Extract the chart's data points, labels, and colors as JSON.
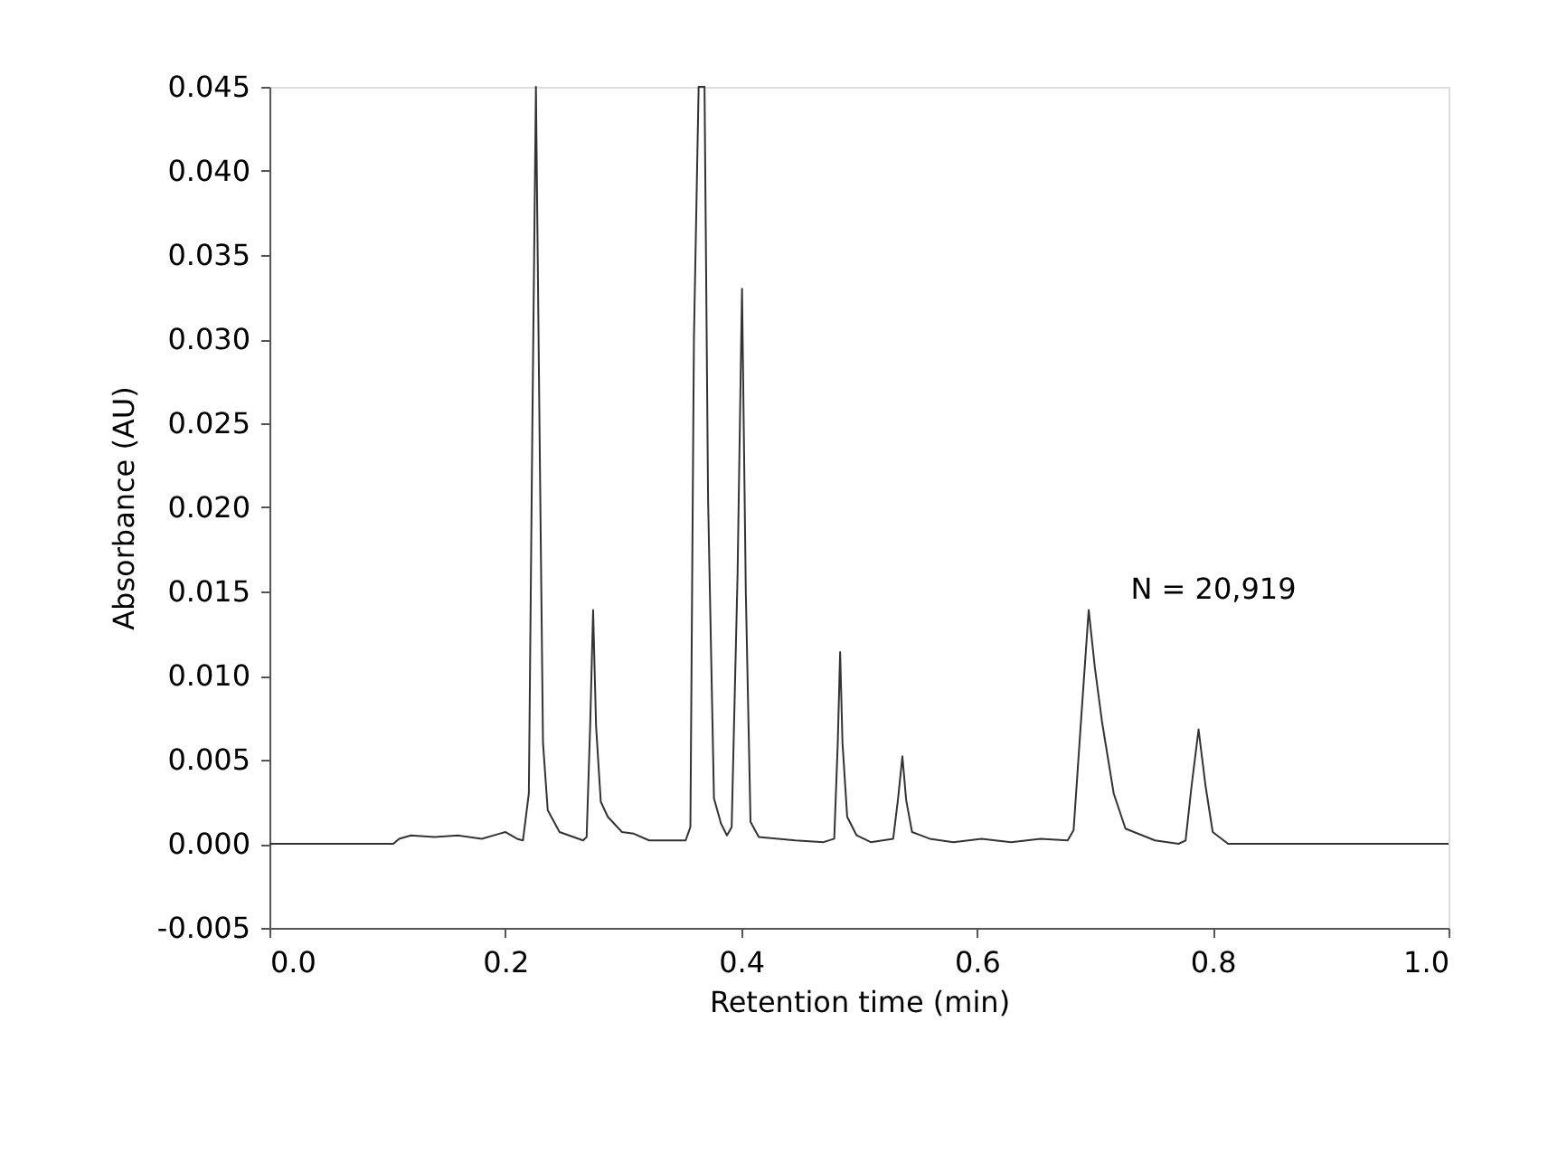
{
  "chart_data": {
    "type": "line",
    "xlabel": "Retention time (min)",
    "ylabel": "Absorbance (AU)",
    "xlim": [
      0,
      1
    ],
    "xticks": [
      {
        "value": 0,
        "label": "0.0"
      },
      0.2,
      0.4,
      0.6,
      0.8,
      {
        "value": 1,
        "label": "1.0"
      }
    ],
    "ylim": [
      -0.005,
      0.045
    ],
    "yticks": [
      -0.005,
      {
        "value": 0,
        "label": "0.000"
      },
      0.005,
      {
        "value": 0.01,
        "label": "0.010"
      },
      0.015,
      {
        "value": 0.02,
        "label": "0.020"
      },
      0.025,
      {
        "value": 0.03,
        "label": "0.030"
      },
      0.035,
      {
        "value": 0.04,
        "label": "0.040"
      },
      0.045
    ],
    "grid": false,
    "marker": "none",
    "line_style": "solid",
    "annotations": [
      "N = 20,919"
    ],
    "series": [
      {
        "color": "#333333",
        "x": [
          0.0,
          0.105,
          0.11,
          0.12,
          0.14,
          0.16,
          0.18,
          0.195,
          0.2,
          0.21,
          0.215,
          0.22,
          0.223,
          0.226,
          0.229,
          0.232,
          0.236,
          0.246,
          0.266,
          0.269,
          0.272,
          0.2745,
          0.277,
          0.281,
          0.287,
          0.299,
          0.309,
          0.322,
          0.353,
          0.357,
          0.36,
          0.364,
          0.369,
          0.372,
          0.377,
          0.383,
          0.388,
          0.392,
          0.397,
          0.4008,
          0.404,
          0.408,
          0.415,
          0.446,
          0.47,
          0.479,
          0.482,
          0.484,
          0.486,
          0.49,
          0.498,
          0.51,
          0.529,
          0.533,
          0.5368,
          0.54,
          0.545,
          0.56,
          0.58,
          0.604,
          0.629,
          0.654,
          0.677,
          0.682,
          0.688,
          0.6948,
          0.7,
          0.706,
          0.716,
          0.726,
          0.751,
          0.771,
          0.777,
          0.782,
          0.788,
          0.794,
          0.8,
          0.813,
          1.0
        ],
        "values": [
          0,
          0,
          0.0003,
          0.0005,
          0.0004,
          0.0005,
          0.0003,
          0.0006,
          0.0007,
          0.0003,
          0.0002,
          0.003,
          0.025,
          0.045,
          0.025,
          0.006,
          0.002,
          0.0007,
          0.0002,
          0.0004,
          0.007,
          0.0139,
          0.007,
          0.0025,
          0.0016,
          0.0007,
          0.0006,
          0.0002,
          0.0002,
          0.001,
          0.03,
          0.045,
          0.045,
          0.0205,
          0.0027,
          0.0012,
          0.0005,
          0.001,
          0.016,
          0.033,
          0.015,
          0.0013,
          0.0004,
          0.0002,
          0.0001,
          0.0003,
          0.006,
          0.0114,
          0.006,
          0.0016,
          0.0005,
          0.0001,
          0.0003,
          0.0026,
          0.0052,
          0.0026,
          0.0007,
          0.0003,
          0.0001,
          0.0003,
          0.0001,
          0.0003,
          0.0002,
          0.0008,
          0.007,
          0.0139,
          0.0105,
          0.0073,
          0.003,
          0.0009,
          0.0002,
          0,
          0.0002,
          0.0034,
          0.0068,
          0.0034,
          0.0007,
          0,
          0
        ]
      }
    ]
  }
}
